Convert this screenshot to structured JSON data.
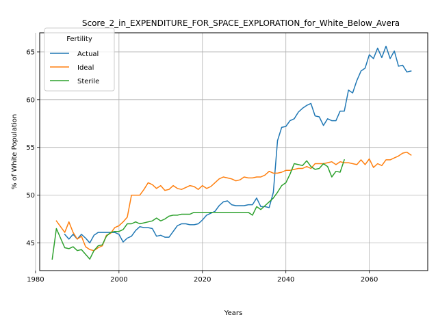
{
  "chart_data": {
    "type": "line",
    "title": "Score_2_in_EXPENDITURE_FOR_SPACE_EXPLORATION_for_White_Below_Avera",
    "xlabel": "Years",
    "ylabel": "% of White Population",
    "xlim": [
      1981,
      2074
    ],
    "ylim": [
      42.1,
      67.0
    ],
    "xticks": [
      1980,
      2000,
      2020,
      2040,
      2060
    ],
    "yticks": [
      45,
      50,
      55,
      60,
      65
    ],
    "grid": true,
    "legend": {
      "title": "Fertility",
      "placement": "top-left"
    },
    "series": [
      {
        "name": "Actual",
        "color": "#1f77b4",
        "x": [
          1987,
          1988,
          1989,
          1990,
          1991,
          1992,
          1993,
          1994,
          1995,
          1996,
          1997,
          1998,
          1999,
          2000,
          2001,
          2002,
          2003,
          2004,
          2005,
          2006,
          2007,
          2008,
          2009,
          2010,
          2011,
          2012,
          2013,
          2014,
          2015,
          2016,
          2017,
          2018,
          2019,
          2020,
          2021,
          2022,
          2023,
          2024,
          2025,
          2026,
          2027,
          2028,
          2029,
          2030,
          2031,
          2032,
          2033,
          2034,
          2035,
          2036,
          2037,
          2038,
          2039,
          2040,
          2041,
          2042,
          2043,
          2044,
          2045,
          2046,
          2047,
          2048,
          2049,
          2050,
          2051,
          2052,
          2053,
          2054,
          2055,
          2056,
          2057,
          2058,
          2059,
          2060,
          2061,
          2062,
          2063,
          2064,
          2065,
          2066,
          2067,
          2068,
          2069,
          2070
        ],
        "y": [
          45.9,
          45.4,
          45.9,
          45.4,
          45.9,
          45.5,
          45.0,
          45.8,
          46.1,
          46.1,
          46.1,
          46.1,
          46.1,
          45.9,
          45.1,
          45.5,
          45.7,
          46.3,
          46.7,
          46.6,
          46.6,
          46.5,
          45.7,
          45.8,
          45.6,
          45.6,
          46.2,
          46.8,
          47.0,
          47.0,
          46.9,
          46.9,
          47.0,
          47.4,
          47.9,
          48.1,
          48.3,
          48.9,
          49.3,
          49.4,
          49.0,
          48.9,
          48.9,
          48.9,
          49.0,
          49.0,
          49.7,
          48.8,
          48.8,
          48.7,
          50.3,
          55.7,
          57.1,
          57.2,
          57.8,
          58.0,
          58.7,
          59.1,
          59.4,
          59.6,
          58.3,
          58.2,
          57.3,
          58.0,
          57.8,
          57.8,
          58.8,
          58.8,
          61.0,
          60.7,
          62.0,
          63.0,
          63.3,
          64.7,
          64.3,
          65.4,
          64.4,
          65.6,
          64.3,
          65.1,
          63.5,
          63.6,
          62.9,
          63.0
        ]
      },
      {
        "name": "Ideal",
        "color": "#ff7f0e",
        "x": [
          1985,
          1986,
          1987,
          1988,
          1989,
          1990,
          1991,
          1992,
          1993,
          1994,
          1995,
          1996,
          1997,
          1998,
          1999,
          2000,
          2001,
          2002,
          2003,
          2004,
          2005,
          2006,
          2007,
          2008,
          2009,
          2010,
          2011,
          2012,
          2013,
          2014,
          2015,
          2016,
          2017,
          2018,
          2019,
          2020,
          2021,
          2022,
          2023,
          2024,
          2025,
          2026,
          2027,
          2028,
          2029,
          2030,
          2031,
          2032,
          2033,
          2034,
          2035,
          2036,
          2037,
          2038,
          2039,
          2040,
          2041,
          2042,
          2043,
          2044,
          2045,
          2046,
          2047,
          2048,
          2049,
          2050,
          2051,
          2052,
          2053,
          2054,
          2055,
          2056,
          2057,
          2058,
          2059,
          2060,
          2061,
          2062,
          2063,
          2064,
          2065,
          2066,
          2067,
          2068,
          2069,
          2070
        ],
        "y": [
          47.3,
          46.7,
          46.1,
          47.2,
          46.1,
          45.4,
          45.7,
          44.6,
          44.3,
          44.2,
          44.5,
          44.7,
          45.8,
          46.0,
          46.6,
          46.8,
          47.2,
          47.7,
          50.0,
          50.0,
          50.0,
          50.6,
          51.3,
          51.1,
          50.7,
          51.0,
          50.5,
          50.6,
          51.0,
          50.7,
          50.6,
          50.8,
          51.0,
          50.9,
          50.6,
          51.0,
          50.7,
          50.9,
          51.3,
          51.7,
          51.9,
          51.8,
          51.7,
          51.5,
          51.6,
          51.9,
          51.8,
          51.8,
          51.9,
          51.9,
          52.1,
          52.5,
          52.3,
          52.3,
          52.4,
          52.6,
          52.6,
          52.7,
          52.8,
          52.8,
          53.0,
          52.8,
          53.3,
          53.3,
          53.3,
          53.4,
          53.5,
          53.2,
          53.5,
          53.4,
          53.4,
          53.3,
          53.2,
          53.7,
          53.2,
          53.8,
          52.9,
          53.3,
          53.1,
          53.7,
          53.7,
          53.9,
          54.1,
          54.4,
          54.5,
          54.2
        ]
      },
      {
        "name": "Sterile",
        "color": "#2ca02c",
        "x": [
          1984,
          1985,
          1986,
          1987,
          1988,
          1989,
          1990,
          1991,
          1992,
          1993,
          1994,
          1995,
          1996,
          1997,
          1998,
          1999,
          2000,
          2001,
          2002,
          2003,
          2004,
          2005,
          2006,
          2007,
          2008,
          2009,
          2010,
          2011,
          2012,
          2013,
          2014,
          2015,
          2016,
          2017,
          2018,
          2019,
          2020,
          2021,
          2022,
          2023,
          2024,
          2025,
          2026,
          2027,
          2028,
          2029,
          2030,
          2031,
          2032,
          2033,
          2034,
          2035,
          2036,
          2037,
          2038,
          2039,
          2040,
          2041,
          2042,
          2043,
          2044,
          2045,
          2046,
          2047,
          2048,
          2049,
          2050,
          2051,
          2052,
          2053,
          2054
        ],
        "y": [
          43.3,
          46.5,
          45.5,
          44.5,
          44.4,
          44.6,
          44.2,
          44.3,
          43.8,
          43.3,
          44.2,
          44.7,
          44.8,
          45.7,
          46.1,
          46.2,
          46.2,
          46.4,
          47.0,
          47.0,
          47.2,
          47.0,
          47.1,
          47.2,
          47.3,
          47.6,
          47.3,
          47.5,
          47.8,
          47.9,
          47.9,
          48.0,
          48.0,
          48.0,
          48.2,
          48.2,
          48.2,
          48.2,
          48.2,
          48.2,
          48.2,
          48.2,
          48.2,
          48.2,
          48.2,
          48.2,
          48.2,
          48.2,
          47.9,
          48.8,
          48.5,
          48.9,
          49.3,
          49.7,
          50.3,
          51.0,
          51.3,
          52.2,
          53.3,
          53.2,
          53.1,
          53.6,
          53.0,
          52.7,
          52.8,
          53.3,
          53.0,
          51.9,
          52.5,
          52.4,
          53.7
        ]
      }
    ]
  }
}
